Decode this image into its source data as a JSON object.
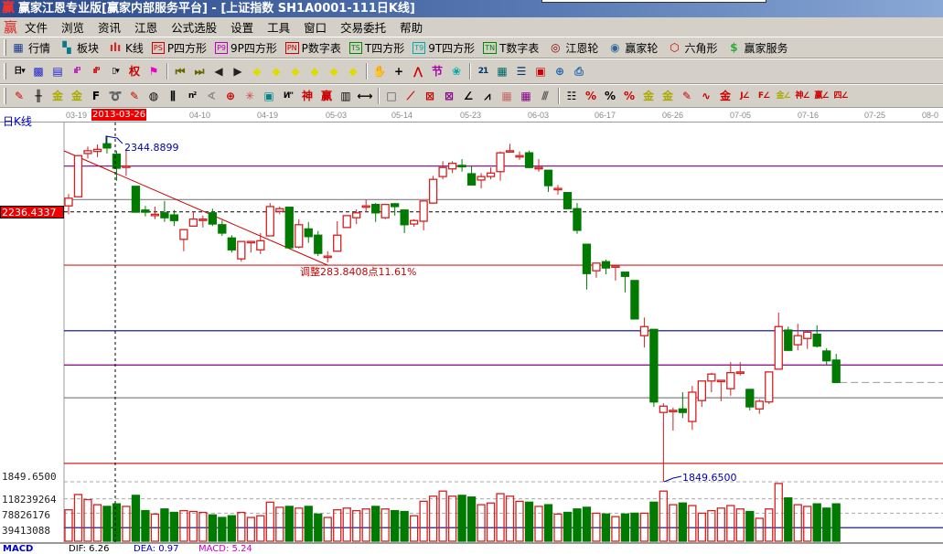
{
  "window": {
    "title": "赢家江恩专业版[赢家内部服务平台] - [上证指数   SH1A0001-111日K线]",
    "logo": "赢"
  },
  "menu": [
    "文件",
    "浏览",
    "资讯",
    "江恩",
    "公式选股",
    "设置",
    "工具",
    "窗口",
    "交易委托",
    "帮助"
  ],
  "toolbar1": [
    {
      "label": "行情",
      "icon": "quote-table-icon",
      "glyph": "▦",
      "color": "#1a3a8a"
    },
    {
      "label": "板块",
      "icon": "sector-blocks-icon",
      "glyph": "▚",
      "color": "#0a7a8a"
    },
    {
      "label": "K线",
      "icon": "candlestick-icon",
      "glyph": "ılı",
      "color": "#d22"
    },
    {
      "label": "P四方形",
      "icon": "ps-box-icon",
      "box": "PS",
      "color": "#c00"
    },
    {
      "label": "9P四方形",
      "icon": "p9-box-icon",
      "box": "P9",
      "color": "#b0b"
    },
    {
      "label": "P数字表",
      "icon": "pn-box-icon",
      "box": "PN",
      "color": "#c00"
    },
    {
      "label": "T四方形",
      "icon": "ts-box-icon",
      "box": "TS",
      "color": "#080"
    },
    {
      "label": "9T四方形",
      "icon": "t9-box-icon",
      "box": "T9",
      "color": "#0aa"
    },
    {
      "label": "T数字表",
      "icon": "tn-box-icon",
      "box": "TN",
      "color": "#080"
    },
    {
      "label": "江恩轮",
      "icon": "gann-wheel-icon",
      "glyph": "◎",
      "color": "#800"
    },
    {
      "label": "赢家轮",
      "icon": "big-wheel-icon",
      "glyph": "◉",
      "color": "#369"
    },
    {
      "label": "六角形",
      "icon": "hexagon-icon",
      "glyph": "⬡",
      "color": "#c00"
    },
    {
      "label": "赢家服务",
      "icon": "dollar-service-icon",
      "glyph": "$",
      "color": "#3a3"
    }
  ],
  "toolbar2": [
    {
      "icon": "period-day-icon",
      "glyph": "日▾",
      "color": "#000"
    },
    {
      "icon": "overlay-icon",
      "glyph": "▩",
      "color": "#22c"
    },
    {
      "icon": "notes-icon",
      "glyph": "▤",
      "color": "#22c"
    },
    {
      "icon": "indicator-3-icon",
      "glyph": "ıl³",
      "color": "#b0b"
    },
    {
      "icon": "indicator-9-icon",
      "glyph": "ıl⁹",
      "color": "#c00"
    },
    {
      "icon": "candle-style-icon",
      "glyph": "▯▾",
      "color": "#000"
    },
    {
      "icon": "weight-icon",
      "glyph": "权",
      "color": "#c00"
    },
    {
      "icon": "flag-icon",
      "glyph": "⚑",
      "color": "#e0c"
    },
    {
      "sep": true
    },
    {
      "icon": "first-icon",
      "glyph": "⏮",
      "color": "#660"
    },
    {
      "icon": "last-icon",
      "glyph": "⏭",
      "color": "#660"
    },
    {
      "icon": "left-icon",
      "glyph": "◀",
      "color": "#222"
    },
    {
      "icon": "right-icon",
      "glyph": "▶",
      "color": "#222"
    },
    {
      "icon": "zoom-left-icon",
      "glyph": "◆",
      "color": "#dd0"
    },
    {
      "icon": "zoom-right-icon",
      "glyph": "◆",
      "color": "#dd0"
    },
    {
      "icon": "expand-h-icon",
      "glyph": "◆",
      "color": "#dd0"
    },
    {
      "icon": "shrink-h-icon",
      "glyph": "◆",
      "color": "#dd0"
    },
    {
      "icon": "expand-all-icon",
      "glyph": "◆",
      "color": "#dd0"
    },
    {
      "icon": "expand-v-icon",
      "glyph": "◆",
      "color": "#dd0"
    },
    {
      "sep": true
    },
    {
      "icon": "hand-icon",
      "glyph": "✋",
      "color": "#333"
    },
    {
      "icon": "crosshair-icon",
      "glyph": "+",
      "color": "#000"
    },
    {
      "icon": "polyline-icon",
      "glyph": "⋀",
      "color": "#c00"
    },
    {
      "icon": "gift-icon",
      "glyph": "节",
      "color": "#a0a"
    },
    {
      "icon": "astro-icon",
      "glyph": "❀",
      "color": "#0aa"
    },
    {
      "sep": true
    },
    {
      "icon": "calendar-icon",
      "glyph": "21",
      "color": "#036"
    },
    {
      "icon": "calculator-icon",
      "glyph": "▦",
      "color": "#066"
    },
    {
      "icon": "notebook-icon",
      "glyph": "☰",
      "color": "#036"
    },
    {
      "icon": "save-icon",
      "glyph": "▣",
      "color": "#c00"
    },
    {
      "icon": "network-icon",
      "glyph": "⊕",
      "color": "#26a"
    },
    {
      "icon": "connect-icon",
      "glyph": "⎙",
      "color": "#26a"
    }
  ],
  "toolbar3": [
    {
      "icon": "pen-icon",
      "glyph": "✎",
      "color": "#c00"
    },
    {
      "icon": "parallel-lines-icon",
      "glyph": "╫",
      "color": "#000"
    },
    {
      "icon": "gold-lines-icon",
      "glyph": "金",
      "color": "#aa0"
    },
    {
      "icon": "gold-lines-2-icon",
      "glyph": "金",
      "color": "#aa0"
    },
    {
      "icon": "fibonacci-icon",
      "glyph": "F",
      "color": "#000"
    },
    {
      "icon": "spiral-icon",
      "glyph": "➰",
      "color": "#000"
    },
    {
      "icon": "pen-ruler-icon",
      "glyph": "✎",
      "color": "#c00"
    },
    {
      "icon": "cycle-ruler-icon",
      "glyph": "◍",
      "color": "#000"
    },
    {
      "icon": "vertical-lines-icon",
      "glyph": "⫼",
      "color": "#000"
    },
    {
      "icon": "n2-lines-icon",
      "glyph": "n²",
      "color": "#000"
    },
    {
      "icon": "angle-icon",
      "glyph": "∢",
      "color": "#888"
    },
    {
      "icon": "target-icon",
      "glyph": "⊕",
      "color": "#c00"
    },
    {
      "icon": "star-grid-icon",
      "glyph": "✳",
      "color": "#c44"
    },
    {
      "icon": "web-grid-icon",
      "glyph": "▣",
      "color": "#088"
    },
    {
      "icon": "n-lines-icon",
      "glyph": "И\"",
      "color": "#000"
    },
    {
      "icon": "shen-lines-icon",
      "glyph": "神",
      "color": "#c00"
    },
    {
      "icon": "ying-lines-icon",
      "glyph": "赢",
      "color": "#c00"
    },
    {
      "icon": "numbered-grid-icon",
      "glyph": "▥",
      "color": "#000"
    },
    {
      "icon": "measure-icon",
      "glyph": "⟷",
      "color": "#000"
    },
    {
      "sep": true
    },
    {
      "icon": "box-lines-icon",
      "glyph": "□",
      "color": "#555"
    },
    {
      "icon": "fan-icon",
      "glyph": "⟋",
      "color": "#c00"
    },
    {
      "icon": "gann-box-icon",
      "glyph": "⊠",
      "color": "#c00"
    },
    {
      "icon": "gann-box-2-icon",
      "glyph": "⊠",
      "color": "#808"
    },
    {
      "icon": "angle-line-icon",
      "glyph": "∠",
      "color": "#000"
    },
    {
      "icon": "zigzag-icon",
      "glyph": "⩘",
      "color": "#000"
    },
    {
      "icon": "grid-icon",
      "glyph": "▦",
      "color": "#c66"
    },
    {
      "icon": "grid-2-icon",
      "glyph": "▦",
      "color": "#808"
    },
    {
      "icon": "multi-lines-icon",
      "glyph": "⫻",
      "color": "#555"
    },
    {
      "sep": true
    },
    {
      "icon": "table-lines-icon",
      "glyph": "☷",
      "color": "#000"
    },
    {
      "icon": "percent-line-icon",
      "glyph": "%",
      "color": "#c00"
    },
    {
      "icon": "percent-icon",
      "glyph": "%",
      "color": "#000"
    },
    {
      "icon": "percent-levels-icon",
      "glyph": "%",
      "color": "#c00"
    },
    {
      "icon": "gold-coin-icon",
      "glyph": "金",
      "color": "#aa0"
    },
    {
      "icon": "gold-levels-icon",
      "glyph": "金",
      "color": "#aa0"
    },
    {
      "icon": "pen-levels-icon",
      "glyph": "✎",
      "color": "#c00"
    },
    {
      "icon": "wave-levels-icon",
      "glyph": "∿",
      "color": "#c00"
    },
    {
      "icon": "gold-red-levels-icon",
      "glyph": "金",
      "color": "#c00"
    },
    {
      "icon": "j-angle-icon",
      "glyph": "J∠",
      "color": "#c00"
    },
    {
      "icon": "f-angle-icon",
      "glyph": "F∠",
      "color": "#c00"
    },
    {
      "icon": "gold-angle-icon",
      "glyph": "金∠",
      "color": "#aa0"
    },
    {
      "icon": "shen-angle-icon",
      "glyph": "神∠",
      "color": "#c00"
    },
    {
      "icon": "ying-angle-icon",
      "glyph": "赢∠",
      "color": "#c00"
    },
    {
      "icon": "four-angle-icon",
      "glyph": "四∠",
      "color": "#c00"
    }
  ],
  "chart": {
    "period_label": "日K线",
    "cursor_date": "2013-03-26",
    "date_ticks": [
      "03-19",
      "04-10",
      "04-19",
      "05-03",
      "05-14",
      "05-23",
      "06-03",
      "06-17",
      "06-26",
      "07-05",
      "07-16",
      "07-25",
      "08-0"
    ],
    "cursor_price_label": "2236.4337",
    "low_axis_label": "1849.6500",
    "high_annotation": "2344.8899",
    "low_annotation": "1849.6500",
    "correction_annotation": "调整283.8408点11.61%",
    "volume_axis_labels": [
      "118239264",
      "78826176",
      "39413088"
    ],
    "colors": {
      "up": "#d42020",
      "down": "#007a00",
      "level_purple": "#800080",
      "level_red": "#d42020",
      "level_blue": "#0000a0",
      "level_gray": "#808080",
      "volume_ma": "#000080"
    },
    "levels": [
      {
        "price": 2302,
        "color": "level_purple"
      },
      {
        "price": 2254,
        "color": "level_gray"
      },
      {
        "price": 2160,
        "color": "level_red"
      },
      {
        "price": 2066,
        "color": "level_blue"
      },
      {
        "price": 2017,
        "color": "level_purple"
      },
      {
        "price": 1970,
        "color": "level_gray"
      },
      {
        "price": 1876,
        "color": "level_red"
      }
    ],
    "price_high": 2344.8899,
    "price_low": 1849.65,
    "cursor_price": 2236.4337,
    "last_close": 1992
  },
  "chart_data": {
    "type": "candlestick",
    "columns": [
      "open",
      "high",
      "low",
      "close",
      "volume"
    ],
    "candles": [
      [
        2245,
        2262,
        2233,
        2256,
        88100000.0
      ],
      [
        2258,
        2317,
        2258,
        2317,
        129800000.0
      ],
      [
        2320,
        2330,
        2313,
        2324,
        115900000.0
      ],
      [
        2323,
        2333,
        2315,
        2326,
        102000000.0
      ],
      [
        2334,
        2345,
        2320,
        2328,
        97400000.0
      ],
      [
        2319,
        2324,
        2281,
        2299,
        104300000.0
      ],
      [
        2302,
        2326,
        2288,
        2302,
        97400000.0
      ],
      [
        2273,
        2273,
        2236,
        2236,
        127500000.0
      ],
      [
        2239,
        2245,
        2230,
        2236,
        85800000.0
      ],
      [
        2231,
        2244,
        2226,
        2233,
        76500000.0
      ],
      [
        2235,
        2252,
        2222,
        2228,
        90400000.0
      ],
      [
        2232,
        2239,
        2216,
        2224,
        81100000.0
      ],
      [
        2197,
        2211,
        2180,
        2211,
        85800000.0
      ],
      [
        2216,
        2236,
        2215,
        2226,
        83500000.0
      ],
      [
        2226,
        2231,
        2214,
        2226,
        81100000.0
      ],
      [
        2235,
        2241,
        2216,
        2219,
        74200000.0
      ],
      [
        2218,
        2224,
        2202,
        2206,
        67200000.0
      ],
      [
        2199,
        2203,
        2178,
        2182,
        71900000.0
      ],
      [
        2169,
        2194,
        2165,
        2194,
        81100000.0
      ],
      [
        2194,
        2195,
        2178,
        2194,
        67200000.0
      ],
      [
        2182,
        2206,
        2176,
        2195,
        71900000.0
      ],
      [
        2202,
        2249,
        2202,
        2244,
        108900000.0
      ],
      [
        2237,
        2244,
        2233,
        2241,
        95000000.0
      ],
      [
        2243,
        2243,
        2185,
        2185,
        97400000.0
      ],
      [
        2186,
        2226,
        2184,
        2218,
        92700000.0
      ],
      [
        2212,
        2222,
        2192,
        2201,
        97400000.0
      ],
      [
        2203,
        2209,
        2173,
        2177,
        76500000.0
      ],
      [
        2173,
        2180,
        2164,
        2173,
        67200000.0
      ],
      [
        2180,
        2223,
        2180,
        2203,
        88100000.0
      ],
      [
        2214,
        2231,
        2214,
        2231,
        92700000.0
      ],
      [
        2228,
        2240,
        2219,
        2235,
        85800000.0
      ],
      [
        2243,
        2254,
        2236,
        2245,
        90400000.0
      ],
      [
        2247,
        2249,
        2222,
        2235,
        97400000.0
      ],
      [
        2228,
        2248,
        2226,
        2247,
        90400000.0
      ],
      [
        2248,
        2249,
        2231,
        2244,
        85800000.0
      ],
      [
        2239,
        2239,
        2206,
        2218,
        83500000.0
      ],
      [
        2219,
        2226,
        2215,
        2224,
        71900000.0
      ],
      [
        2223,
        2252,
        2210,
        2252,
        111300000.0
      ],
      [
        2249,
        2288,
        2248,
        2283,
        125200000.0
      ],
      [
        2287,
        2309,
        2283,
        2300,
        139100000.0
      ],
      [
        2298,
        2309,
        2292,
        2306,
        125200000.0
      ],
      [
        2303,
        2312,
        2294,
        2302,
        127500000.0
      ],
      [
        2291,
        2302,
        2275,
        2275,
        122900000.0
      ],
      [
        2282,
        2292,
        2270,
        2287,
        102000000.0
      ],
      [
        2287,
        2300,
        2283,
        2292,
        106600000.0
      ],
      [
        2294,
        2323,
        2281,
        2321,
        132100000.0
      ],
      [
        2324,
        2334,
        2323,
        2324,
        125200000.0
      ],
      [
        2317,
        2323,
        2311,
        2317,
        111300000.0
      ],
      [
        2321,
        2324,
        2299,
        2300,
        108900000.0
      ],
      [
        2300,
        2312,
        2294,
        2300,
        97400000.0
      ],
      [
        2296,
        2296,
        2265,
        2274,
        102000000.0
      ],
      [
        2270,
        2275,
        2261,
        2270,
        76500000.0
      ],
      [
        2264,
        2265,
        2240,
        2241,
        81100000.0
      ],
      [
        2241,
        2249,
        2205,
        2210,
        90400000.0
      ],
      [
        2190,
        2190,
        2125,
        2148,
        95000000.0
      ],
      [
        2152,
        2163,
        2142,
        2163,
        78800000.0
      ],
      [
        2165,
        2168,
        2147,
        2156,
        76500000.0
      ],
      [
        2159,
        2159,
        2138,
        2159,
        69500000.0
      ],
      [
        2150,
        2150,
        2121,
        2144,
        76500000.0
      ],
      [
        2138,
        2138,
        2083,
        2083,
        78800000.0
      ],
      [
        2059,
        2085,
        2042,
        2072,
        78800000.0
      ],
      [
        2068,
        2068,
        1957,
        1964,
        108900000.0
      ],
      [
        1949,
        1962,
        1849.65,
        1958,
        139100000.0
      ],
      [
        1952,
        1956,
        1923,
        1952,
        102000000.0
      ],
      [
        1954,
        1978,
        1941,
        1949,
        106600000.0
      ],
      [
        1936,
        1987,
        1924,
        1978,
        99700000.0
      ],
      [
        1966,
        1994,
        1957,
        1994,
        78800000.0
      ],
      [
        1994,
        2006,
        1978,
        2004,
        85800000.0
      ],
      [
        1995,
        1995,
        1965,
        1995,
        92700000.0
      ],
      [
        1983,
        2021,
        1973,
        2006,
        99700000.0
      ],
      [
        2007,
        2021,
        2002,
        2007,
        90400000.0
      ],
      [
        1982,
        1982,
        1952,
        1957,
        83500000.0
      ],
      [
        1954,
        1968,
        1947,
        1965,
        64900000.0
      ],
      [
        1964,
        2007,
        1961,
        2007,
        90400000.0
      ],
      [
        2011,
        2092,
        2011,
        2072,
        159900000.0
      ],
      [
        2067,
        2072,
        2037,
        2038,
        120500000.0
      ],
      [
        2046,
        2076,
        2038,
        2059,
        102000000.0
      ],
      [
        2055,
        2066,
        2040,
        2064,
        97400000.0
      ],
      [
        2061,
        2074,
        2042,
        2044,
        104300000.0
      ],
      [
        2037,
        2041,
        2017,
        2023,
        92700000.0
      ],
      [
        2024,
        2033,
        1991,
        1992,
        104300000.0
      ]
    ]
  },
  "macd": {
    "title": "MACD",
    "dif": "DIF: 6.26",
    "dea": "DEA: 0.97",
    "macd": "MACD: 5.24"
  }
}
